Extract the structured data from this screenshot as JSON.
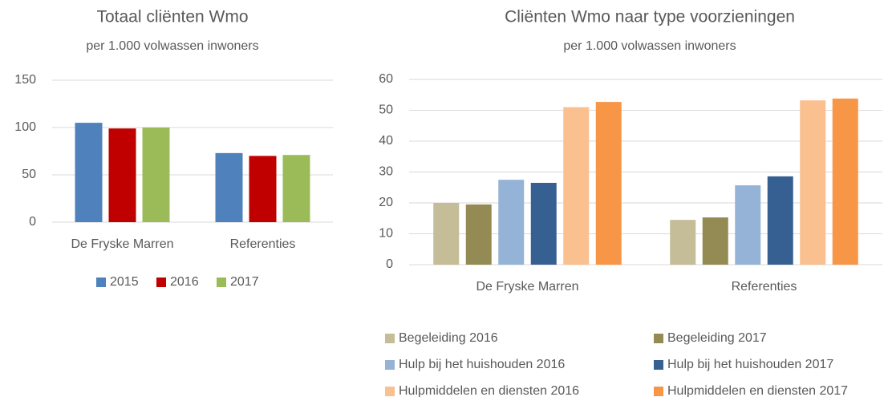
{
  "chart_data": [
    {
      "type": "bar",
      "title": "Totaal cliënten Wmo",
      "subtitle": "per 1.000 volwassen inwoners",
      "categories": [
        "De Fryske Marren",
        "Referenties"
      ],
      "series": [
        {
          "name": "2015",
          "color": "#4f81bd",
          "values": [
            105,
            73
          ]
        },
        {
          "name": "2016",
          "color": "#c00000",
          "values": [
            99,
            70
          ]
        },
        {
          "name": "2017",
          "color": "#9bbb59",
          "values": [
            100,
            71
          ]
        }
      ],
      "ylim": [
        0,
        150
      ],
      "yticks": [
        0,
        50,
        100,
        150
      ],
      "grid": true,
      "legend": "bottom"
    },
    {
      "type": "bar",
      "title": "Cliënten Wmo naar type voorzieningen",
      "subtitle": "per 1.000 volwassen inwoners",
      "categories": [
        "De Fryske Marren",
        "Referenties"
      ],
      "series": [
        {
          "name": "Begeleiding 2016",
          "color": "#c4bd97",
          "values": [
            20,
            14.5
          ]
        },
        {
          "name": "Begeleiding 2017",
          "color": "#948a54",
          "values": [
            19.5,
            15.3
          ]
        },
        {
          "name": "Hulp bij het huishouden 2016",
          "color": "#95b3d7",
          "values": [
            27.5,
            25.7
          ]
        },
        {
          "name": "Hulp bij het huishouden 2017",
          "color": "#376092",
          "values": [
            26.5,
            28.6
          ]
        },
        {
          "name": "Hulpmiddelen en diensten 2016",
          "color": "#fac090",
          "values": [
            51,
            53.2
          ]
        },
        {
          "name": "Hulpmiddelen en diensten 2017",
          "color": "#f79646",
          "values": [
            52.7,
            53.8
          ]
        }
      ],
      "ylim": [
        0,
        60
      ],
      "yticks": [
        0,
        10,
        20,
        30,
        40,
        50,
        60
      ],
      "grid": true,
      "legend": "bottom"
    }
  ]
}
